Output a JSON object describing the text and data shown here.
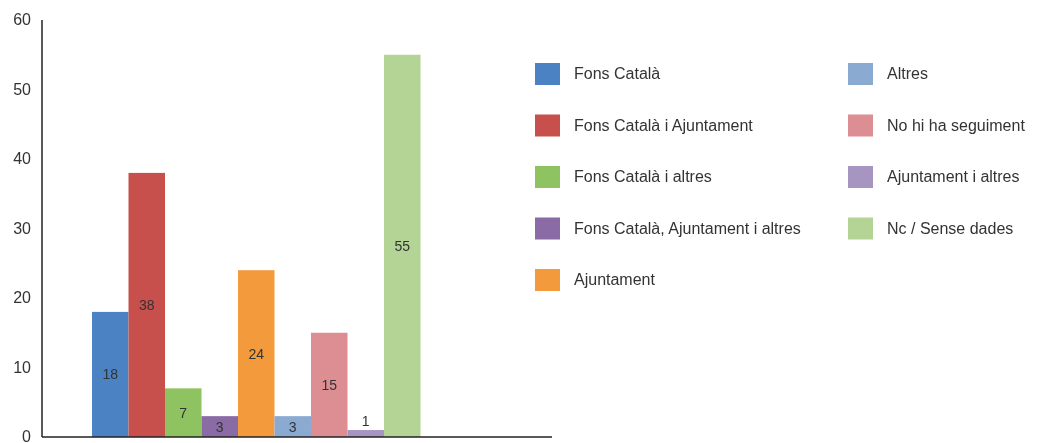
{
  "chart_data": {
    "type": "bar",
    "categories": [
      null
    ],
    "series": [
      {
        "name": "Fons Català",
        "color": "#4a82c4",
        "values": [
          18
        ]
      },
      {
        "name": "Fons Català i Ajuntament",
        "color": "#c8504c",
        "values": [
          38
        ]
      },
      {
        "name": "Fons Català i altres",
        "color": "#8fc260",
        "values": [
          7
        ]
      },
      {
        "name": "Fons Català, Ajuntament i altres",
        "color": "#8a6ba6",
        "values": [
          3
        ]
      },
      {
        "name": "Ajuntament",
        "color": "#f29a3c",
        "values": [
          24
        ]
      },
      {
        "name": "Altres",
        "color": "#8aaad2",
        "values": [
          3
        ]
      },
      {
        "name": "No hi ha seguiment",
        "color": "#dc8e92",
        "values": [
          15
        ]
      },
      {
        "name": "Ajuntament i altres",
        "color": "#a695c0",
        "values": [
          1
        ]
      },
      {
        "name": "Nc / Sense dades",
        "color": "#b4d496",
        "values": [
          55
        ]
      }
    ],
    "ylim": [
      0,
      60
    ],
    "yticks": [
      0,
      10,
      20,
      30,
      40,
      50,
      60
    ],
    "data_labels": true,
    "legend": "right"
  }
}
